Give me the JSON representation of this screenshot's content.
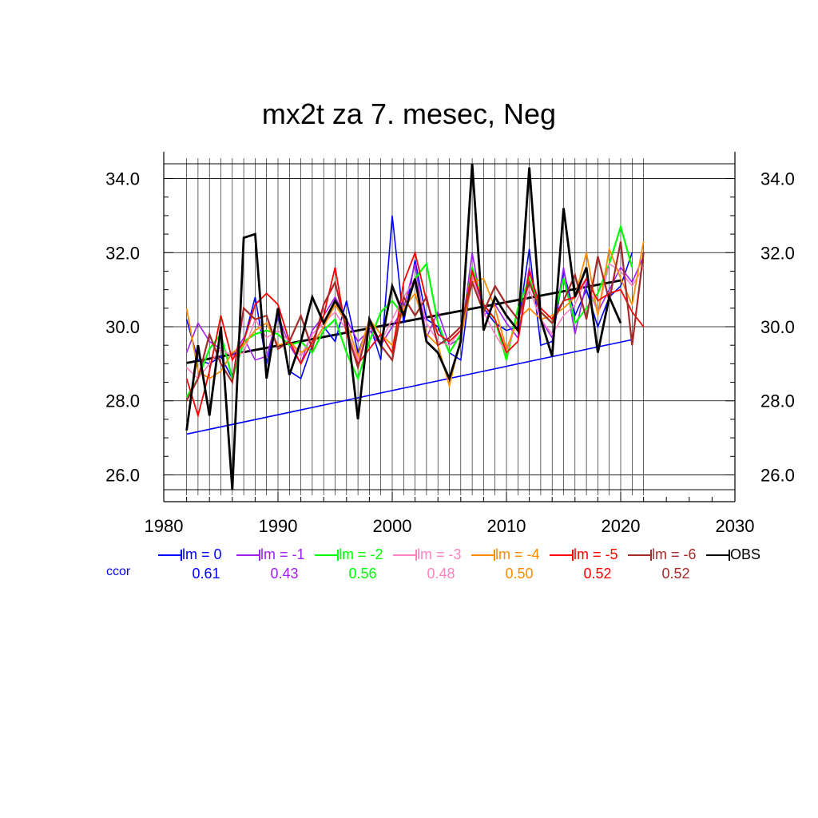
{
  "chart_data": {
    "type": "line",
    "title": "mx2t za 7. mesec, Neg",
    "xlabel": "",
    "ylabel": "",
    "xlim": [
      1980,
      2030
    ],
    "ylim": [
      25.6,
      34.4
    ],
    "x_ticks": [
      "1980",
      "1990",
      "2000",
      "2010",
      "2020",
      "2030"
    ],
    "y_ticks": [
      "26.0",
      "28.0",
      "30.0",
      "32.0",
      "34.0"
    ],
    "y_tick_values": [
      26,
      28,
      30,
      32,
      34
    ],
    "grid": true,
    "legend_position": "bottom",
    "ccor_label": "ccor",
    "series": [
      {
        "name": "lm = 0",
        "ccor": "0.61",
        "color": "#0000ff",
        "width": 1.6,
        "x": [
          1982,
          1983,
          1984,
          1985,
          1986,
          1987,
          1988,
          1989,
          1990,
          1991,
          1992,
          1993,
          1994,
          1995,
          1996,
          1997,
          1998,
          1999,
          2000,
          2001,
          2002,
          2003,
          2004,
          2005,
          2006,
          2007,
          2008,
          2009,
          2010,
          2011,
          2012,
          2013,
          2014,
          2015,
          2016,
          2017,
          2018,
          2019,
          2020,
          2021
        ],
        "y": [
          30.2,
          29.1,
          29.0,
          29.2,
          28.6,
          29.6,
          30.8,
          29.0,
          30.3,
          28.8,
          28.6,
          29.5,
          30.0,
          29.6,
          30.7,
          29.3,
          30.1,
          29.1,
          33.0,
          30.1,
          31.8,
          30.2,
          30.0,
          29.3,
          29.1,
          31.5,
          30.5,
          30.1,
          29.9,
          30.0,
          32.1,
          29.5,
          29.6,
          31.5,
          30.3,
          31.0,
          30.0,
          30.8,
          31.1,
          32.0
        ]
      },
      {
        "name": "lm = -1",
        "ccor": "0.43",
        "color": "#a020f0",
        "width": 1.6,
        "x": [
          1982,
          1983,
          1984,
          1985,
          1986,
          1987,
          1988,
          1989,
          1990,
          1991,
          1992,
          1993,
          1994,
          1995,
          1996,
          1997,
          1998,
          1999,
          2000,
          2001,
          2002,
          2003,
          2004,
          2005,
          2006,
          2007,
          2008,
          2009,
          2010,
          2011,
          2012,
          2013,
          2014,
          2015,
          2016,
          2017,
          2018,
          2019,
          2020,
          2021,
          2022
        ],
        "y": [
          29.3,
          30.1,
          29.6,
          29.4,
          29.2,
          29.7,
          29.1,
          29.2,
          30.3,
          29.5,
          29.0,
          29.9,
          30.3,
          30.8,
          30.2,
          29.6,
          29.9,
          29.5,
          30.0,
          30.5,
          31.7,
          29.7,
          30.4,
          29.5,
          29.7,
          32.0,
          30.3,
          30.6,
          30.1,
          29.7,
          31.6,
          30.2,
          29.7,
          31.6,
          29.8,
          31.2,
          30.4,
          31.0,
          31.6,
          31.2,
          31.9
        ]
      },
      {
        "name": "lm = -2",
        "ccor": "0.56",
        "color": "#00ff00",
        "width": 2.2,
        "x": [
          1982,
          1983,
          1984,
          1985,
          1986,
          1987,
          1988,
          1989,
          1990,
          1991,
          1992,
          1993,
          1994,
          1995,
          1996,
          1997,
          1998,
          1999,
          2000,
          2001,
          2002,
          2003,
          2004,
          2005,
          2006,
          2007,
          2008,
          2009,
          2010,
          2011,
          2012,
          2013,
          2014,
          2015,
          2016,
          2017,
          2018,
          2019,
          2020,
          2021
        ],
        "y": [
          28.1,
          28.6,
          29.4,
          29.8,
          28.6,
          29.6,
          29.8,
          29.9,
          29.8,
          29.5,
          29.6,
          29.3,
          29.9,
          30.2,
          29.3,
          28.6,
          29.6,
          30.4,
          30.7,
          30.3,
          31.3,
          31.7,
          30.1,
          29.3,
          29.8,
          31.6,
          30.6,
          30.2,
          29.1,
          30.5,
          31.3,
          30.4,
          30.1,
          31.3,
          30.1,
          30.5,
          30.9,
          31.7,
          32.7,
          31.6
        ]
      },
      {
        "name": "lm = -3",
        "ccor": "0.48",
        "color": "#ff82c2",
        "width": 1.6,
        "x": [
          1982,
          1983,
          1984,
          1985,
          1986,
          1987,
          1988,
          1989,
          1990,
          1991,
          1992,
          1993,
          1994,
          1995,
          1996,
          1997,
          1998,
          1999,
          2000,
          2001,
          2002,
          2003,
          2004,
          2005,
          2006,
          2007,
          2008,
          2009,
          2010,
          2011,
          2012,
          2013,
          2014,
          2015,
          2016,
          2017,
          2018,
          2019,
          2020,
          2021,
          2022
        ],
        "y": [
          28.9,
          28.6,
          29.0,
          29.4,
          29.2,
          29.3,
          30.2,
          29.7,
          29.9,
          29.6,
          29.2,
          29.8,
          30.1,
          30.4,
          29.9,
          29.1,
          30.0,
          29.6,
          30.2,
          30.8,
          31.3,
          30.1,
          29.6,
          29.5,
          29.9,
          31.4,
          30.4,
          29.8,
          29.3,
          30.2,
          31.0,
          30.2,
          29.8,
          30.3,
          30.6,
          31.3,
          30.4,
          31.7,
          31.5,
          31.1,
          31.6
        ]
      },
      {
        "name": "lm = -4",
        "ccor": "0.50",
        "color": "#ff8c00",
        "width": 1.8,
        "x": [
          1982,
          1983,
          1984,
          1985,
          1986,
          1987,
          1988,
          1989,
          1990,
          1991,
          1992,
          1993,
          1994,
          1995,
          1996,
          1997,
          1998,
          1999,
          2000,
          2001,
          2002,
          2003,
          2004,
          2005,
          2006,
          2007,
          2008,
          2009,
          2010,
          2011,
          2012,
          2013,
          2014,
          2015,
          2016,
          2017,
          2018,
          2019,
          2020,
          2021,
          2022
        ],
        "y": [
          30.5,
          28.8,
          28.6,
          28.8,
          29.3,
          29.5,
          29.9,
          30.1,
          29.5,
          29.6,
          29.3,
          29.5,
          30.0,
          30.6,
          30.1,
          29.2,
          30.2,
          29.8,
          29.5,
          30.5,
          30.9,
          29.8,
          29.5,
          28.4,
          29.7,
          31.2,
          31.3,
          30.5,
          29.4,
          30.2,
          30.5,
          30.2,
          30.3,
          30.5,
          30.8,
          32.0,
          30.3,
          32.1,
          31.3,
          30.6,
          32.3
        ]
      },
      {
        "name": "lm = -5",
        "ccor": "0.52",
        "color": "#ff0000",
        "width": 1.8,
        "x": [
          1982,
          1983,
          1984,
          1985,
          1986,
          1987,
          1988,
          1989,
          1990,
          1991,
          1992,
          1993,
          1994,
          1995,
          1996,
          1997,
          1998,
          1999,
          2000,
          2001,
          2002,
          2003,
          2004,
          2005,
          2006,
          2007,
          2008,
          2009,
          2010,
          2011,
          2012,
          2013,
          2014,
          2015,
          2016,
          2017,
          2018,
          2019,
          2020,
          2021,
          2022
        ],
        "y": [
          28.6,
          27.6,
          28.8,
          30.3,
          29.1,
          29.6,
          30.6,
          30.9,
          30.6,
          29.6,
          29.0,
          29.6,
          30.3,
          31.6,
          29.8,
          29.0,
          29.4,
          29.8,
          29.3,
          31.2,
          32.0,
          30.7,
          29.8,
          29.6,
          29.9,
          31.5,
          30.6,
          30.2,
          29.3,
          29.6,
          31.5,
          30.5,
          30.2,
          30.7,
          30.8,
          31.3,
          30.7,
          30.9,
          31.0,
          30.4,
          30.0
        ]
      },
      {
        "name": "lm = -6",
        "ccor": "0.52",
        "color": "#a52a2a",
        "width": 2.2,
        "x": [
          1982,
          1983,
          1984,
          1985,
          1986,
          1987,
          1988,
          1989,
          1990,
          1991,
          1992,
          1993,
          1994,
          1995,
          1996,
          1997,
          1998,
          1999,
          2000,
          2001,
          2002,
          2003,
          2004,
          2005,
          2006,
          2007,
          2008,
          2009,
          2010,
          2011,
          2012,
          2013,
          2014,
          2015,
          2016,
          2017,
          2018,
          2019,
          2020,
          2021,
          2022
        ],
        "y": [
          28.0,
          28.6,
          29.8,
          29.0,
          28.5,
          30.5,
          30.2,
          30.3,
          29.4,
          29.6,
          30.3,
          29.4,
          30.6,
          31.2,
          29.9,
          28.9,
          30.1,
          29.5,
          29.1,
          30.8,
          30.3,
          30.8,
          29.5,
          29.7,
          30.0,
          31.2,
          30.4,
          31.1,
          30.6,
          30.2,
          31.2,
          30.4,
          30.1,
          30.7,
          31.4,
          30.2,
          31.9,
          30.7,
          32.3,
          29.5,
          32.0
        ]
      },
      {
        "name": "OBS",
        "ccor": "",
        "color": "#000000",
        "width": 2.8,
        "x": [
          1982,
          1983,
          1984,
          1985,
          1986,
          1987,
          1988,
          1989,
          1990,
          1991,
          1992,
          1993,
          1994,
          1995,
          1996,
          1997,
          1998,
          1999,
          2000,
          2001,
          2002,
          2003,
          2004,
          2005,
          2006,
          2007,
          2008,
          2009,
          2010,
          2011,
          2012,
          2013,
          2014,
          2015,
          2016,
          2017,
          2018,
          2019,
          2020
        ],
        "y": [
          27.2,
          29.5,
          27.6,
          30.0,
          25.6,
          32.4,
          32.5,
          28.6,
          30.5,
          28.7,
          29.6,
          30.8,
          30.1,
          30.7,
          30.2,
          27.5,
          30.2,
          29.5,
          31.1,
          30.3,
          31.3,
          29.6,
          29.3,
          28.6,
          29.6,
          34.4,
          29.9,
          30.8,
          30.3,
          29.9,
          34.3,
          30.2,
          29.2,
          33.2,
          30.8,
          31.6,
          29.3,
          30.8,
          30.1
        ]
      }
    ],
    "trend_lines": [
      {
        "color": "#0000ff",
        "width": 1.6,
        "x": [
          1982,
          2021
        ],
        "y": [
          27.1,
          29.65
        ]
      },
      {
        "color": "#000000",
        "width": 2.8,
        "x": [
          1982,
          2020
        ],
        "y": [
          29.02,
          31.25
        ]
      }
    ]
  }
}
